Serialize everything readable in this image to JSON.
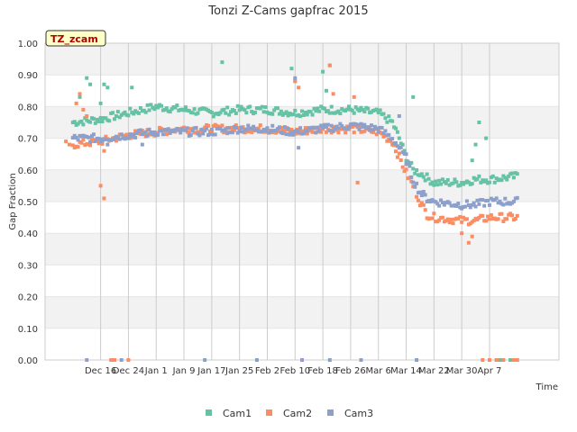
{
  "chart_data": {
    "type": "scatter",
    "title": "Tonzi Z-Cams gapfrac 2015",
    "xlabel": "Time",
    "ylabel": "Gap Fraction",
    "badge": "TZ_zcam",
    "ylim": [
      0,
      1.0
    ],
    "yticks": [
      "0.00",
      "0.10",
      "0.20",
      "0.30",
      "0.40",
      "0.50",
      "0.60",
      "0.70",
      "0.80",
      "0.90",
      "1.00"
    ],
    "xlim_days": [
      -16,
      132
    ],
    "xticks": [
      {
        "day": 0,
        "label": "Dec 16"
      },
      {
        "day": 8,
        "label": "Dec 24"
      },
      {
        "day": 16,
        "label": "Jan 1"
      },
      {
        "day": 24,
        "label": "Jan 9"
      },
      {
        "day": 32,
        "label": "Jan 17"
      },
      {
        "day": 40,
        "label": "Jan 25"
      },
      {
        "day": 48,
        "label": "Feb 2"
      },
      {
        "day": 56,
        "label": "Feb 10"
      },
      {
        "day": 64,
        "label": "Feb 18"
      },
      {
        "day": 72,
        "label": "Feb 26"
      },
      {
        "day": 80,
        "label": "Mar 6"
      },
      {
        "day": 88,
        "label": "Mar 14"
      },
      {
        "day": 96,
        "label": "Mar 22"
      },
      {
        "day": 104,
        "label": "Mar 30"
      },
      {
        "day": 112,
        "label": "Apr 7"
      }
    ],
    "grid": true,
    "legend_position": "bottom",
    "series": [
      {
        "name": "Cam1",
        "color": "#66c2a5",
        "profile": [
          [
            -8,
            0.75
          ],
          [
            0,
            0.76
          ],
          [
            4,
            0.77
          ],
          [
            8,
            0.78
          ],
          [
            12,
            0.79
          ],
          [
            16,
            0.8
          ],
          [
            24,
            0.79
          ],
          [
            32,
            0.78
          ],
          [
            40,
            0.79
          ],
          [
            48,
            0.79
          ],
          [
            56,
            0.78
          ],
          [
            64,
            0.79
          ],
          [
            72,
            0.79
          ],
          [
            80,
            0.78
          ],
          [
            84,
            0.75
          ],
          [
            86,
            0.7
          ],
          [
            88,
            0.64
          ],
          [
            90,
            0.6
          ],
          [
            92,
            0.59
          ],
          [
            96,
            0.56
          ],
          [
            104,
            0.56
          ],
          [
            108,
            0.57
          ],
          [
            112,
            0.57
          ],
          [
            120,
            0.58
          ]
        ],
        "outliers": [
          [
            -6,
            0.83
          ],
          [
            -4,
            0.89
          ],
          [
            -3,
            0.87
          ],
          [
            0,
            0.81
          ],
          [
            1,
            0.87
          ],
          [
            2,
            0.86
          ],
          [
            9,
            0.86
          ],
          [
            35,
            0.94
          ],
          [
            55,
            0.92
          ],
          [
            56,
            0.88
          ],
          [
            64,
            0.91
          ],
          [
            65,
            0.85
          ],
          [
            66,
            0.93
          ],
          [
            90,
            0.83
          ],
          [
            107,
            0.63
          ],
          [
            108,
            0.68
          ],
          [
            109,
            0.75
          ],
          [
            111,
            0.7
          ],
          [
            114,
            0.0
          ],
          [
            115,
            0.0
          ],
          [
            116,
            0.0
          ],
          [
            118,
            0.0
          ]
        ]
      },
      {
        "name": "Cam2",
        "color": "#fc8d62",
        "profile": [
          [
            -8,
            0.68
          ],
          [
            0,
            0.69
          ],
          [
            4,
            0.7
          ],
          [
            8,
            0.71
          ],
          [
            16,
            0.72
          ],
          [
            24,
            0.73
          ],
          [
            32,
            0.73
          ],
          [
            40,
            0.73
          ],
          [
            48,
            0.73
          ],
          [
            56,
            0.72
          ],
          [
            64,
            0.73
          ],
          [
            72,
            0.73
          ],
          [
            80,
            0.72
          ],
          [
            84,
            0.69
          ],
          [
            86,
            0.64
          ],
          [
            88,
            0.59
          ],
          [
            90,
            0.55
          ],
          [
            92,
            0.5
          ],
          [
            94,
            0.46
          ],
          [
            96,
            0.45
          ],
          [
            104,
            0.44
          ],
          [
            108,
            0.44
          ],
          [
            112,
            0.45
          ],
          [
            120,
            0.45
          ]
        ],
        "outliers": [
          [
            -10,
            0.69
          ],
          [
            -9,
            0.68
          ],
          [
            -7,
            0.81
          ],
          [
            -6,
            0.84
          ],
          [
            -5,
            0.79
          ],
          [
            -4,
            0.77
          ],
          [
            1,
            0.66
          ],
          [
            0,
            0.55
          ],
          [
            1,
            0.51
          ],
          [
            4,
            0.0
          ],
          [
            3,
            0.0
          ],
          [
            8,
            0.0
          ],
          [
            56,
            0.88
          ],
          [
            57,
            0.86
          ],
          [
            66,
            0.93
          ],
          [
            67,
            0.84
          ],
          [
            73,
            0.83
          ],
          [
            74,
            0.56
          ],
          [
            104,
            0.4
          ],
          [
            106,
            0.37
          ],
          [
            107,
            0.39
          ],
          [
            110,
            0.0
          ],
          [
            112,
            0.0
          ],
          [
            114,
            0.0
          ],
          [
            116,
            0.0
          ],
          [
            119,
            0.0
          ],
          [
            120,
            0.0
          ]
        ]
      },
      {
        "name": "Cam3",
        "color": "#8da0cb",
        "profile": [
          [
            -8,
            0.7
          ],
          [
            0,
            0.7
          ],
          [
            8,
            0.71
          ],
          [
            16,
            0.72
          ],
          [
            24,
            0.72
          ],
          [
            32,
            0.72
          ],
          [
            40,
            0.73
          ],
          [
            48,
            0.73
          ],
          [
            56,
            0.72
          ],
          [
            64,
            0.73
          ],
          [
            72,
            0.74
          ],
          [
            80,
            0.73
          ],
          [
            84,
            0.7
          ],
          [
            86,
            0.67
          ],
          [
            88,
            0.63
          ],
          [
            90,
            0.57
          ],
          [
            92,
            0.53
          ],
          [
            94,
            0.51
          ],
          [
            96,
            0.5
          ],
          [
            104,
            0.49
          ],
          [
            108,
            0.49
          ],
          [
            112,
            0.5
          ],
          [
            120,
            0.5
          ]
        ],
        "outliers": [
          [
            0,
            0.69
          ],
          [
            2,
            0.68
          ],
          [
            12,
            0.68
          ],
          [
            -4,
            0.0
          ],
          [
            6,
            0.0
          ],
          [
            30,
            0.0
          ],
          [
            45,
            0.0
          ],
          [
            56,
            0.89
          ],
          [
            57,
            0.67
          ],
          [
            58,
            0.0
          ],
          [
            66,
            0.0
          ],
          [
            75,
            0.0
          ],
          [
            86,
            0.77
          ],
          [
            88,
            0.65
          ],
          [
            91,
            0.0
          ]
        ]
      }
    ]
  }
}
